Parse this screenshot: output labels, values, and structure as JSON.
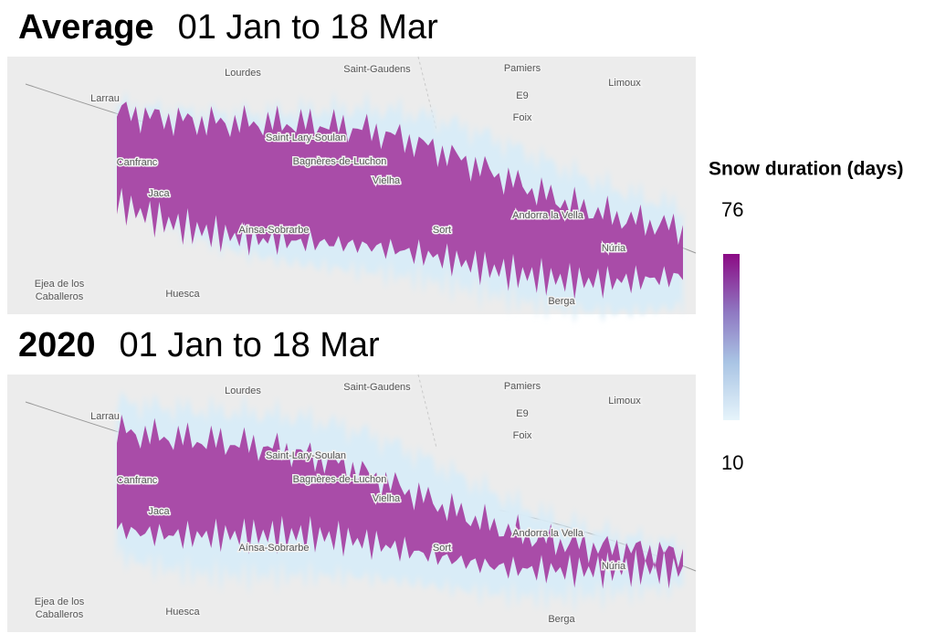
{
  "panels": [
    {
      "title_bold": "Average",
      "title_range": "01 Jan to 18 Mar",
      "places": [
        "Lourdes",
        "Saint-Gaudens",
        "Pamiers",
        "Limoux",
        "Larrau",
        "E9",
        "Foix",
        "Saint-Lary-Soulan",
        "Bagnères-de-Luchon",
        "Canfranc",
        "Jaca",
        "Vielha",
        "Aínsa-Sobrarbe",
        "Sort",
        "Andorra la Vella",
        "Núria",
        "Ejea de los",
        "Caballeros",
        "Huesca",
        "Berga"
      ]
    },
    {
      "title_bold": "2020",
      "title_range": "01 Jan to 18 Mar",
      "places": [
        "Lourdes",
        "Saint-Gaudens",
        "Pamiers",
        "Limoux",
        "Larrau",
        "E9",
        "Foix",
        "Saint-Lary-Soulan",
        "Bagnères-de-Luchon",
        "Canfranc",
        "Jaca",
        "Vielha",
        "Aínsa-Sobrarbe",
        "Sort",
        "Andorra la Vella",
        "Núria",
        "Ejea de los",
        "Caballeros",
        "Huesca",
        "Berga"
      ]
    }
  ],
  "legend": {
    "title": "Snow duration (days)",
    "max": 76,
    "min": 10
  }
}
